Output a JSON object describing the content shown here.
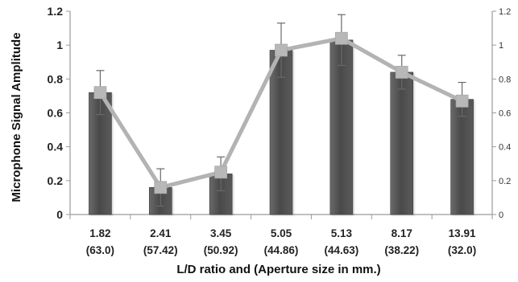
{
  "chart_data": {
    "type": "bar",
    "ylabel": "Microphone Signal Amplitude",
    "xlabel": "L/D ratio and (Aperture size in mm.)",
    "ylim": [
      0,
      1.2
    ],
    "yticks": [
      "0",
      "0.2",
      "0.4",
      "0.6",
      "0.8",
      "1",
      "1.2"
    ],
    "y2lim": [
      0,
      1.2
    ],
    "y2ticks": [
      "0",
      "0.2",
      "0.4",
      "0.6",
      "0.8",
      "1",
      "1.2"
    ],
    "grid": false,
    "categories": [
      {
        "ratio": "1.82",
        "aperture": "(63.0)"
      },
      {
        "ratio": "2.41",
        "aperture": "(57.42)"
      },
      {
        "ratio": "3.45",
        "aperture": "(50.92)"
      },
      {
        "ratio": "5.05",
        "aperture": "(44.86)"
      },
      {
        "ratio": "5.13",
        "aperture": "(44.63)"
      },
      {
        "ratio": "8.17",
        "aperture": "(38.22)"
      },
      {
        "ratio": "13.91",
        "aperture": "(32.0)"
      }
    ],
    "series": [
      {
        "type": "bar",
        "axis": "left",
        "values": [
          0.72,
          0.16,
          0.24,
          0.97,
          1.03,
          0.84,
          0.68
        ],
        "error": [
          0.13,
          0.11,
          0.1,
          0.16,
          0.15,
          0.1,
          0.1
        ],
        "color": "#555555"
      },
      {
        "type": "line",
        "axis": "right",
        "values": [
          0.72,
          0.16,
          0.25,
          0.97,
          1.04,
          0.84,
          0.67
        ],
        "color": "#b3b3b3"
      }
    ]
  }
}
